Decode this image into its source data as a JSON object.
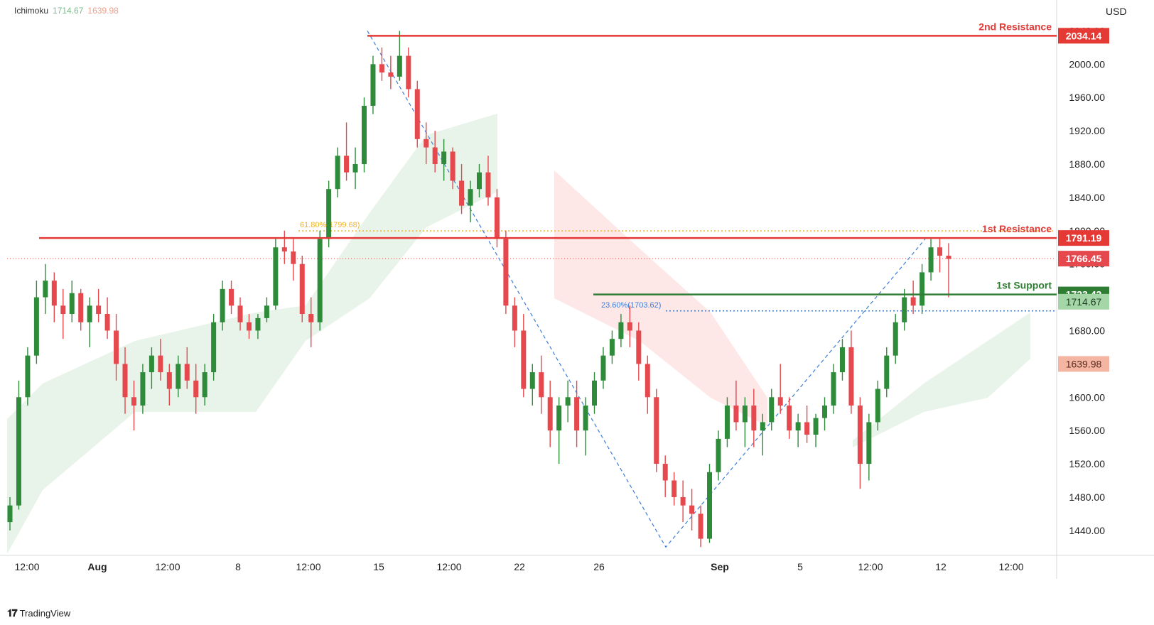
{
  "legend": {
    "name": "Ichimoku",
    "value1": "1714.67",
    "value2": "1639.98"
  },
  "currency": "USD",
  "brand": {
    "logo_icon": "tradingview-logo-icon",
    "name": "TradingView"
  },
  "colors": {
    "bull": "#2e8b3a",
    "bear": "#e5484d",
    "resistance": "#e53935",
    "support": "#2e7d32",
    "fib": "#f0b429",
    "fib_blue": "#3b7dd8",
    "cloud_green": "#e6f2e8",
    "cloud_red": "#fde4e4"
  },
  "chart_data": {
    "type": "candlestick",
    "ylim": [
      1410,
      2060
    ],
    "y_ticks": [
      "1440.00",
      "1480.00",
      "1520.00",
      "1560.00",
      "1600.00",
      "1640.00",
      "1680.00",
      "1720.00",
      "1760.00",
      "1800.00",
      "1840.00",
      "1880.00",
      "1920.00",
      "1960.00",
      "2000.00",
      "2040.00"
    ],
    "x_ticks": [
      "12:00",
      "Aug",
      "12:00",
      "8",
      "12:00",
      "15",
      "12:00",
      "22",
      "26",
      "Sep",
      "5",
      "12:00",
      "12",
      "12:00"
    ],
    "levels": [
      {
        "name": "2nd Resistance",
        "value": 2034.14,
        "label": "2034.14",
        "color": "#e53935"
      },
      {
        "name": "1st Resistance",
        "value": 1791.19,
        "label": "1791.19",
        "color": "#e53935"
      },
      {
        "name": "1st Support",
        "value": 1723.42,
        "label": "1723.42",
        "color": "#2e7d32"
      }
    ],
    "fib_labels": [
      {
        "text": "61.80%(1799.68)",
        "value": 1799.68
      },
      {
        "text": "23.60%(1703.62)",
        "value": 1703.62
      }
    ],
    "price_labels": [
      {
        "label": "1766.45",
        "value": 1766.45,
        "kind": "last"
      },
      {
        "label": "1714.67",
        "value": 1714.67,
        "kind": "cloud_a"
      },
      {
        "label": "1639.98",
        "value": 1639.98,
        "kind": "cloud_b"
      }
    ],
    "trend_points": [
      {
        "i": 0,
        "price": 2040
      },
      {
        "i": 1,
        "price": 1420
      },
      {
        "i": 2,
        "price": 1790
      }
    ],
    "candles": [
      [
        1450,
        1480,
        1440,
        1470
      ],
      [
        1470,
        1620,
        1465,
        1600
      ],
      [
        1600,
        1660,
        1590,
        1650
      ],
      [
        1650,
        1740,
        1640,
        1720
      ],
      [
        1720,
        1760,
        1700,
        1740
      ],
      [
        1740,
        1750,
        1690,
        1710
      ],
      [
        1710,
        1730,
        1670,
        1700
      ],
      [
        1700,
        1740,
        1690,
        1725
      ],
      [
        1725,
        1730,
        1680,
        1690
      ],
      [
        1690,
        1720,
        1660,
        1710
      ],
      [
        1710,
        1730,
        1690,
        1700
      ],
      [
        1700,
        1720,
        1670,
        1680
      ],
      [
        1680,
        1700,
        1620,
        1640
      ],
      [
        1640,
        1660,
        1580,
        1600
      ],
      [
        1600,
        1620,
        1560,
        1590
      ],
      [
        1590,
        1640,
        1580,
        1630
      ],
      [
        1630,
        1660,
        1610,
        1650
      ],
      [
        1650,
        1670,
        1620,
        1630
      ],
      [
        1630,
        1640,
        1590,
        1610
      ],
      [
        1610,
        1650,
        1600,
        1640
      ],
      [
        1640,
        1660,
        1610,
        1620
      ],
      [
        1620,
        1640,
        1580,
        1600
      ],
      [
        1600,
        1640,
        1590,
        1630
      ],
      [
        1630,
        1700,
        1620,
        1690
      ],
      [
        1690,
        1740,
        1680,
        1730
      ],
      [
        1730,
        1740,
        1700,
        1710
      ],
      [
        1710,
        1720,
        1680,
        1690
      ],
      [
        1690,
        1700,
        1670,
        1680
      ],
      [
        1680,
        1700,
        1670,
        1695
      ],
      [
        1695,
        1720,
        1690,
        1710
      ],
      [
        1710,
        1790,
        1705,
        1780
      ],
      [
        1780,
        1800,
        1760,
        1775
      ],
      [
        1775,
        1790,
        1740,
        1760
      ],
      [
        1760,
        1770,
        1690,
        1700
      ],
      [
        1700,
        1720,
        1660,
        1690
      ],
      [
        1690,
        1800,
        1680,
        1790
      ],
      [
        1790,
        1860,
        1780,
        1850
      ],
      [
        1850,
        1900,
        1840,
        1890
      ],
      [
        1890,
        1930,
        1860,
        1870
      ],
      [
        1870,
        1900,
        1850,
        1880
      ],
      [
        1880,
        1960,
        1870,
        1950
      ],
      [
        1950,
        2010,
        1940,
        2000
      ],
      [
        2000,
        2020,
        1980,
        1990
      ],
      [
        1990,
        2010,
        1970,
        1985
      ],
      [
        1985,
        2040,
        1980,
        2010
      ],
      [
        2010,
        2020,
        1960,
        1970
      ],
      [
        1970,
        1980,
        1900,
        1910
      ],
      [
        1910,
        1930,
        1880,
        1900
      ],
      [
        1900,
        1920,
        1870,
        1880
      ],
      [
        1880,
        1910,
        1860,
        1895
      ],
      [
        1895,
        1900,
        1850,
        1860
      ],
      [
        1860,
        1880,
        1820,
        1830
      ],
      [
        1830,
        1860,
        1810,
        1850
      ],
      [
        1850,
        1880,
        1840,
        1870
      ],
      [
        1870,
        1890,
        1830,
        1840
      ],
      [
        1840,
        1850,
        1780,
        1790
      ],
      [
        1790,
        1800,
        1700,
        1710
      ],
      [
        1710,
        1720,
        1660,
        1680
      ],
      [
        1680,
        1700,
        1600,
        1610
      ],
      [
        1610,
        1640,
        1590,
        1630
      ],
      [
        1630,
        1650,
        1580,
        1600
      ],
      [
        1600,
        1620,
        1540,
        1560
      ],
      [
        1560,
        1600,
        1520,
        1590
      ],
      [
        1590,
        1620,
        1570,
        1600
      ],
      [
        1600,
        1620,
        1540,
        1560
      ],
      [
        1560,
        1600,
        1530,
        1590
      ],
      [
        1590,
        1630,
        1580,
        1620
      ],
      [
        1620,
        1660,
        1610,
        1650
      ],
      [
        1650,
        1680,
        1640,
        1670
      ],
      [
        1670,
        1700,
        1660,
        1690
      ],
      [
        1690,
        1710,
        1660,
        1680
      ],
      [
        1680,
        1690,
        1620,
        1640
      ],
      [
        1640,
        1650,
        1580,
        1600
      ],
      [
        1600,
        1610,
        1510,
        1520
      ],
      [
        1520,
        1530,
        1480,
        1500
      ],
      [
        1500,
        1510,
        1470,
        1480
      ],
      [
        1480,
        1500,
        1450,
        1470
      ],
      [
        1470,
        1490,
        1440,
        1460
      ],
      [
        1460,
        1470,
        1420,
        1430
      ],
      [
        1430,
        1520,
        1425,
        1510
      ],
      [
        1510,
        1560,
        1500,
        1550
      ],
      [
        1550,
        1600,
        1540,
        1590
      ],
      [
        1590,
        1620,
        1560,
        1570
      ],
      [
        1570,
        1600,
        1540,
        1590
      ],
      [
        1590,
        1610,
        1540,
        1560
      ],
      [
        1560,
        1580,
        1530,
        1570
      ],
      [
        1570,
        1610,
        1560,
        1600
      ],
      [
        1600,
        1640,
        1580,
        1590
      ],
      [
        1590,
        1600,
        1550,
        1560
      ],
      [
        1560,
        1580,
        1540,
        1570
      ],
      [
        1570,
        1590,
        1545,
        1555
      ],
      [
        1555,
        1580,
        1540,
        1575
      ],
      [
        1575,
        1600,
        1560,
        1590
      ],
      [
        1590,
        1640,
        1580,
        1630
      ],
      [
        1630,
        1670,
        1620,
        1660
      ],
      [
        1660,
        1680,
        1580,
        1590
      ],
      [
        1590,
        1600,
        1490,
        1520
      ],
      [
        1520,
        1580,
        1500,
        1570
      ],
      [
        1570,
        1620,
        1560,
        1610
      ],
      [
        1610,
        1660,
        1600,
        1650
      ],
      [
        1650,
        1700,
        1640,
        1690
      ],
      [
        1690,
        1730,
        1680,
        1720
      ],
      [
        1720,
        1740,
        1700,
        1710
      ],
      [
        1710,
        1760,
        1700,
        1750
      ],
      [
        1750,
        1790,
        1740,
        1780
      ],
      [
        1780,
        1790,
        1750,
        1770
      ],
      [
        1770,
        1785,
        1720,
        1766
      ]
    ]
  }
}
